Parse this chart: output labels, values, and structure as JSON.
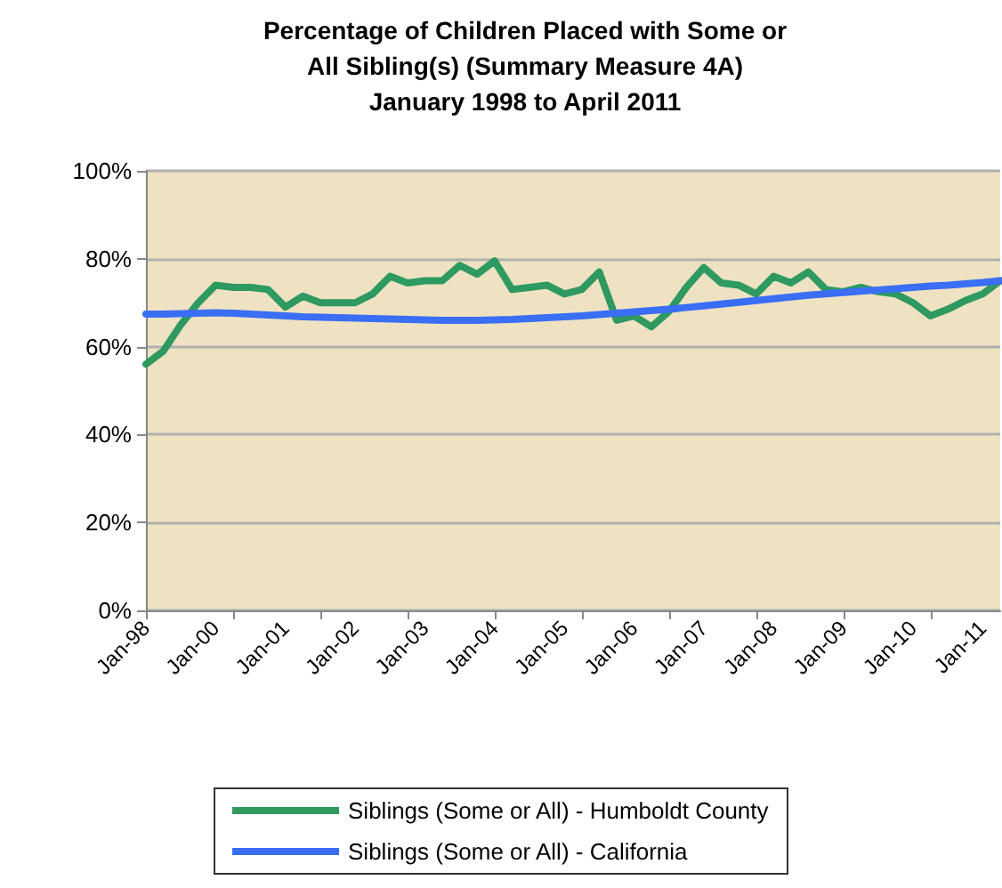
{
  "chart_data": {
    "type": "line",
    "title": "Percentage of Children Placed with Some or\nAll Sibling(s) (Summary Measure 4A)\nJanuary 1998 to April 2011",
    "categories": [
      "Jan-98",
      null,
      null,
      null,
      "Jan-00",
      null,
      null,
      null,
      "Jan-01",
      null,
      null,
      null,
      "Jan-02",
      null,
      null,
      null,
      "Jan-03",
      null,
      null,
      null,
      "Jan-04",
      null,
      null,
      null,
      "Jan-05",
      null,
      null,
      null,
      "Jan-06",
      null,
      null,
      null,
      "Jan-07",
      null,
      null,
      null,
      "Jan-08",
      null,
      null,
      null,
      "Jan-09",
      null,
      null,
      null,
      "Jan-10",
      null,
      null,
      null,
      "Jan-11",
      null
    ],
    "series": [
      {
        "name": "Siblings (Some or All) - Humboldt County",
        "color": "#2e9960",
        "values": [
          56,
          59,
          65,
          70,
          74,
          73.5,
          73.5,
          73,
          69,
          71.5,
          70,
          70,
          70,
          72,
          76,
          74.5,
          75,
          75,
          78.5,
          76.5,
          79.5,
          73,
          73.5,
          74,
          72,
          73,
          77,
          66,
          67,
          64.5,
          68,
          73.5,
          78,
          74.5,
          74,
          72,
          76,
          74.5,
          77,
          73,
          72.5,
          73.5,
          72.5,
          72,
          70,
          67,
          68.5,
          70.5,
          72,
          75
        ]
      },
      {
        "name": "Siblings (Some or All) - California",
        "color": "#3a6ef5",
        "values": [
          67.4,
          67.4,
          67.5,
          67.6,
          67.7,
          67.6,
          67.4,
          67.2,
          67,
          66.8,
          66.7,
          66.6,
          66.5,
          66.4,
          66.3,
          66.2,
          66.1,
          66,
          66,
          66,
          66.1,
          66.2,
          66.4,
          66.6,
          66.8,
          67,
          67.3,
          67.6,
          67.9,
          68.2,
          68.5,
          68.9,
          69.3,
          69.7,
          70.1,
          70.5,
          70.9,
          71.3,
          71.7,
          72,
          72.3,
          72.6,
          72.9,
          73.2,
          73.5,
          73.8,
          74,
          74.3,
          74.6,
          75
        ]
      }
    ],
    "ylim": [
      0,
      100
    ],
    "yticks": [
      {
        "value": 0,
        "label": "0%"
      },
      {
        "value": 20,
        "label": "20%"
      },
      {
        "value": 40,
        "label": "40%"
      },
      {
        "value": 60,
        "label": "60%"
      },
      {
        "value": 80,
        "label": "80%"
      },
      {
        "value": 100,
        "label": "100%"
      }
    ],
    "grid": "y",
    "legend": "bottom",
    "marker": "none",
    "line_style": "solid"
  }
}
